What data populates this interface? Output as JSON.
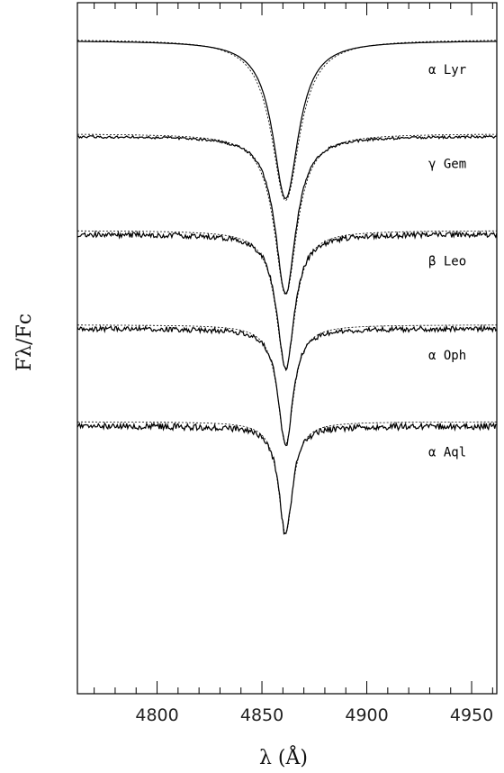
{
  "chart_data": {
    "type": "line",
    "xlabel": "λ (Å)",
    "ylabel": "Fλ/Fc",
    "xlim": [
      4762,
      4962
    ],
    "x_ticks": [
      4800,
      4850,
      4900,
      4950
    ],
    "line_center": 4861.3,
    "series": [
      {
        "name": "α Lyr",
        "continuum_offset": 0.0,
        "depth": 0.62,
        "width": 7.5,
        "noise": 0.0,
        "model_style": "dotted"
      },
      {
        "name": "γ Gem",
        "continuum_offset": 0.37,
        "depth": 0.62,
        "width": 6.0,
        "noise": 0.01,
        "model_style": "dotted"
      },
      {
        "name": "β Leo",
        "continuum_offset": 0.75,
        "depth": 0.53,
        "width": 5.0,
        "noise": 0.02,
        "model_style": "dash-dot"
      },
      {
        "name": "α Oph",
        "continuum_offset": 1.12,
        "depth": 0.46,
        "width": 4.2,
        "noise": 0.02,
        "model_style": "dash-dot"
      },
      {
        "name": "α Aql",
        "continuum_offset": 1.5,
        "depth": 0.43,
        "width": 3.8,
        "noise": 0.025,
        "model_style": "dash-dot"
      }
    ],
    "grid": false,
    "legend": "inline labels right of each spectrum"
  }
}
